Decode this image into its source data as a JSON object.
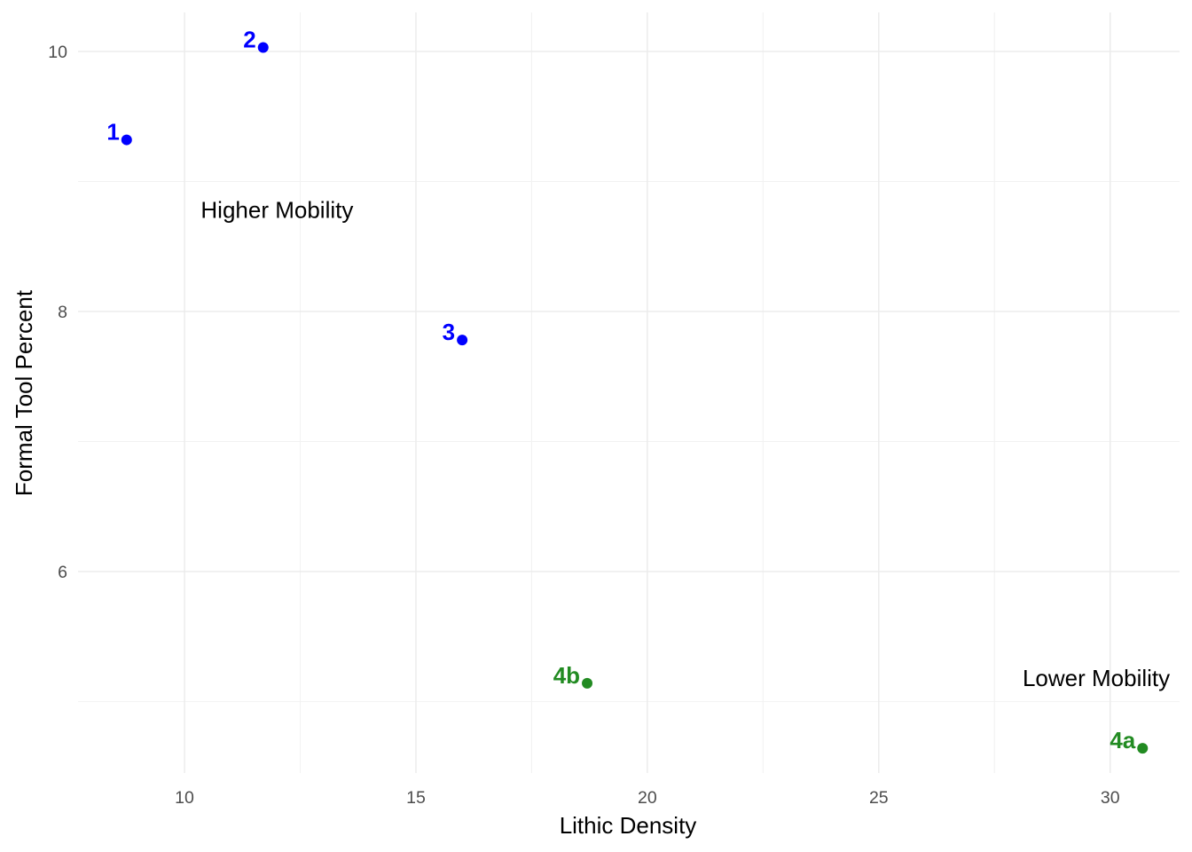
{
  "chart_data": {
    "type": "scatter",
    "title": "",
    "xlabel": "Lithic Density",
    "ylabel": "Formal Tool Percent",
    "xlim": [
      7.7,
      31.5
    ],
    "ylim": [
      4.45,
      10.3
    ],
    "x_ticks": [
      10,
      15,
      20,
      25,
      30
    ],
    "y_ticks": [
      6,
      8,
      10
    ],
    "x_tick_labels": [
      "10",
      "15",
      "20",
      "25",
      "30"
    ],
    "y_tick_labels": [
      "6",
      "8",
      "10"
    ],
    "grid": true,
    "legend": "none",
    "points": [
      {
        "label": "1",
        "x": 8.75,
        "y": 9.32,
        "color": "#0000ff"
      },
      {
        "label": "2",
        "x": 11.7,
        "y": 10.03,
        "color": "#0000ff"
      },
      {
        "label": "3",
        "x": 16.0,
        "y": 7.78,
        "color": "#0000ff"
      },
      {
        "label": "4b",
        "x": 18.7,
        "y": 5.14,
        "color": "#228b22"
      },
      {
        "label": "4a",
        "x": 30.7,
        "y": 4.64,
        "color": "#228b22"
      }
    ],
    "annotations": [
      {
        "text": "Higher Mobility",
        "x": 12.0,
        "y": 8.78
      },
      {
        "text": "Lower Mobility",
        "x": 29.7,
        "y": 5.18
      }
    ]
  }
}
